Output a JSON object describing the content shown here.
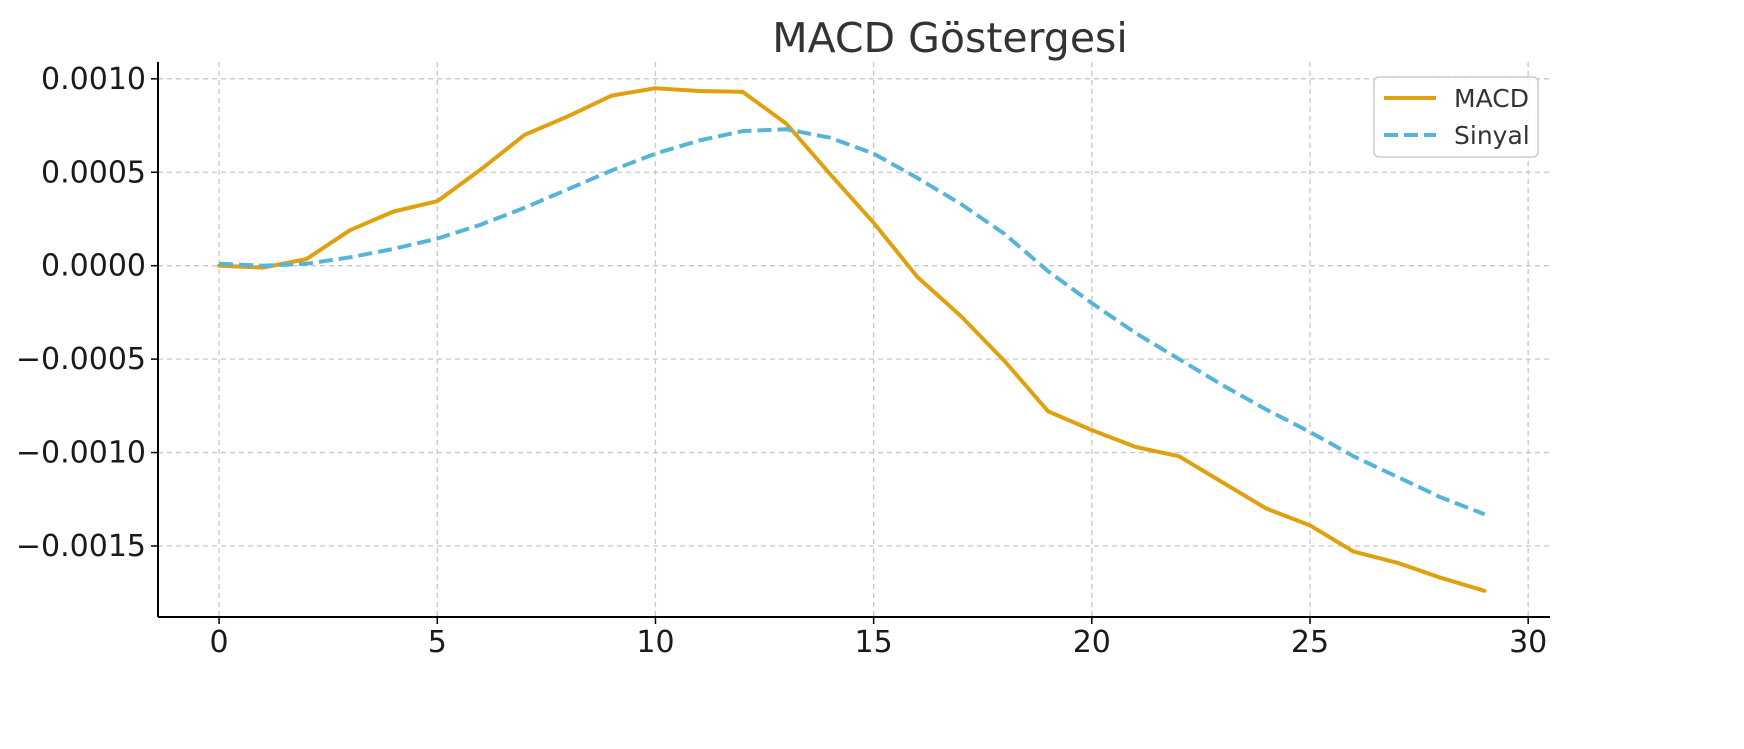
{
  "chart_data": {
    "type": "line",
    "title": "MACD Göstergesi",
    "xlabel": "",
    "ylabel": "",
    "xlim": [
      -1.4,
      30.5
    ],
    "ylim": [
      -0.00188,
      0.00109
    ],
    "x_ticks": [
      0,
      5,
      10,
      15,
      20,
      25,
      30
    ],
    "x_tick_labels": [
      "0",
      "5",
      "10",
      "15",
      "20",
      "25",
      "30"
    ],
    "y_ticks": [
      0.001,
      0.0005,
      0.0,
      -0.0005,
      -0.001,
      -0.0015
    ],
    "y_tick_labels": [
      "0.0010",
      "0.0005",
      "0.0000",
      "−0.0005",
      "−0.0010",
      "−0.0015"
    ],
    "grid": true,
    "legend_position": "top-right",
    "x": [
      0,
      1,
      2,
      3,
      4,
      5,
      6,
      7,
      8,
      9,
      10,
      11,
      12,
      13,
      14,
      15,
      16,
      17,
      18,
      19,
      20,
      21,
      22,
      23,
      24,
      25,
      26,
      27,
      28,
      29
    ],
    "series": [
      {
        "name": "MACD",
        "color": "#e0a010",
        "style": "solid",
        "values": [
          0.0,
          -1e-05,
          3.5e-05,
          0.00019,
          0.00029,
          0.000345,
          0.000515,
          0.0007,
          0.0008,
          0.00091,
          0.00095,
          0.000935,
          0.00093,
          0.00076,
          0.00049,
          0.00023,
          -6e-05,
          -0.00027,
          -0.00051,
          -0.00078,
          -0.00088,
          -0.00097,
          -0.00102,
          -0.00116,
          -0.0013,
          -0.00139,
          -0.00153,
          -0.00159,
          -0.00167,
          -0.00174
        ]
      },
      {
        "name": "Sinyal",
        "color": "#56b4d9",
        "style": "dashed",
        "values": [
          1e-05,
          0.0,
          1e-05,
          4.5e-05,
          9e-05,
          0.000145,
          0.00022,
          0.00031,
          0.00041,
          0.00051,
          0.0006,
          0.00067,
          0.00072,
          0.00073,
          0.000685,
          0.0006,
          0.00047,
          0.00033,
          0.00017,
          -3e-05,
          -0.0002,
          -0.00036,
          -0.0005,
          -0.00064,
          -0.00077,
          -0.00089,
          -0.00102,
          -0.00113,
          -0.00124,
          -0.00133
        ]
      }
    ]
  }
}
